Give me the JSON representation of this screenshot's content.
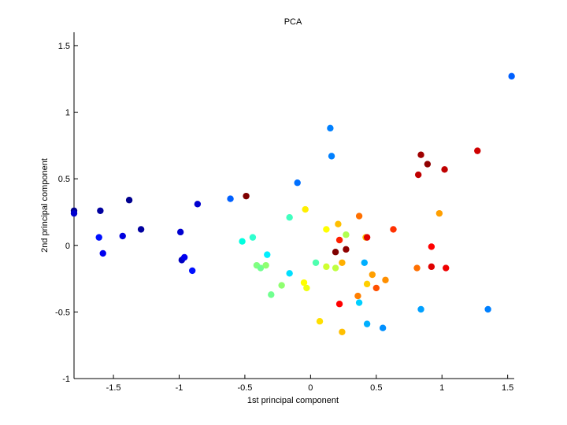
{
  "chart_data": {
    "type": "scatter",
    "title": "PCA",
    "xlabel": "1st principal component",
    "ylabel": "2nd principal component",
    "xlim": [
      -1.8,
      1.55
    ],
    "ylim": [
      -1.0,
      1.6
    ],
    "xticks": [
      -1.5,
      -1,
      -0.5,
      0,
      0.5,
      1,
      1.5
    ],
    "xtick_labels": [
      "-1.5",
      "-1",
      "-0.5",
      "0",
      "0.5",
      "1",
      "1.5"
    ],
    "yticks": [
      -1,
      -0.5,
      0,
      0.5,
      1,
      1.5
    ],
    "ytick_labels": [
      "-1",
      "-0.5",
      "0",
      "0.5",
      "1",
      "1.5"
    ],
    "grid": false,
    "legend": "none",
    "points": [
      {
        "x": -1.8,
        "y": 0.26,
        "color": "#00008f"
      },
      {
        "x": -1.8,
        "y": 0.24,
        "color": "#0000cf"
      },
      {
        "x": -1.6,
        "y": 0.26,
        "color": "#00009f"
      },
      {
        "x": -1.61,
        "y": 0.06,
        "color": "#0010ff"
      },
      {
        "x": -1.58,
        "y": -0.06,
        "color": "#0000ef"
      },
      {
        "x": -1.43,
        "y": 0.07,
        "color": "#0000df"
      },
      {
        "x": -1.38,
        "y": 0.34,
        "color": "#00008f"
      },
      {
        "x": -1.29,
        "y": 0.12,
        "color": "#00009f"
      },
      {
        "x": -0.99,
        "y": 0.1,
        "color": "#0000cf"
      },
      {
        "x": -0.98,
        "y": -0.11,
        "color": "#0000bf"
      },
      {
        "x": -0.96,
        "y": -0.09,
        "color": "#0000ef"
      },
      {
        "x": -0.9,
        "y": -0.19,
        "color": "#0010ff"
      },
      {
        "x": -0.86,
        "y": 0.31,
        "color": "#0000cf"
      },
      {
        "x": -0.61,
        "y": 0.35,
        "color": "#0060ff"
      },
      {
        "x": -0.49,
        "y": 0.37,
        "color": "#7f0000"
      },
      {
        "x": -0.1,
        "y": 0.47,
        "color": "#0070ff"
      },
      {
        "x": 0.15,
        "y": 0.88,
        "color": "#0080ff"
      },
      {
        "x": 0.16,
        "y": 0.67,
        "color": "#0080ff"
      },
      {
        "x": 1.53,
        "y": 1.27,
        "color": "#0060ff"
      },
      {
        "x": -0.52,
        "y": 0.03,
        "color": "#00ffdf"
      },
      {
        "x": -0.44,
        "y": 0.06,
        "color": "#30ffcf"
      },
      {
        "x": -0.41,
        "y": -0.15,
        "color": "#80ff80"
      },
      {
        "x": -0.38,
        "y": -0.17,
        "color": "#70ff8f"
      },
      {
        "x": -0.34,
        "y": -0.15,
        "color": "#8fff70"
      },
      {
        "x": -0.33,
        "y": -0.07,
        "color": "#00efff"
      },
      {
        "x": -0.3,
        "y": -0.37,
        "color": "#70ff8f"
      },
      {
        "x": -0.22,
        "y": -0.3,
        "color": "#8fff70"
      },
      {
        "x": -0.16,
        "y": 0.21,
        "color": "#40ffbf"
      },
      {
        "x": -0.16,
        "y": -0.21,
        "color": "#00dfff"
      },
      {
        "x": -0.04,
        "y": 0.27,
        "color": "#ffef00"
      },
      {
        "x": -0.05,
        "y": -0.28,
        "color": "#ffff00"
      },
      {
        "x": -0.03,
        "y": -0.32,
        "color": "#efff10"
      },
      {
        "x": 0.04,
        "y": -0.13,
        "color": "#4fffaf"
      },
      {
        "x": 0.07,
        "y": -0.57,
        "color": "#ffdf00"
      },
      {
        "x": 0.12,
        "y": 0.12,
        "color": "#ffff00"
      },
      {
        "x": 0.12,
        "y": -0.16,
        "color": "#cfff30"
      },
      {
        "x": 0.19,
        "y": -0.05,
        "color": "#7f0000"
      },
      {
        "x": 0.19,
        "y": -0.17,
        "color": "#bfff40"
      },
      {
        "x": 0.21,
        "y": 0.16,
        "color": "#ffbf00"
      },
      {
        "x": 0.22,
        "y": 0.04,
        "color": "#ff2000"
      },
      {
        "x": 0.22,
        "y": -0.44,
        "color": "#ff0000"
      },
      {
        "x": 0.24,
        "y": -0.13,
        "color": "#ffaf00"
      },
      {
        "x": 0.24,
        "y": -0.65,
        "color": "#ffbf00"
      },
      {
        "x": 0.27,
        "y": 0.08,
        "color": "#afff50"
      },
      {
        "x": 0.27,
        "y": -0.03,
        "color": "#8f0000"
      },
      {
        "x": 0.36,
        "y": -0.38,
        "color": "#ff7f00"
      },
      {
        "x": 0.37,
        "y": 0.22,
        "color": "#ff7000"
      },
      {
        "x": 0.37,
        "y": -0.43,
        "color": "#00cfff"
      },
      {
        "x": 0.41,
        "y": -0.13,
        "color": "#00afff"
      },
      {
        "x": 0.42,
        "y": 0.06,
        "color": "#ffbf00"
      },
      {
        "x": 0.43,
        "y": 0.06,
        "color": "#df0000"
      },
      {
        "x": 0.43,
        "y": -0.29,
        "color": "#ffcf00"
      },
      {
        "x": 0.43,
        "y": -0.59,
        "color": "#00afff"
      },
      {
        "x": 0.47,
        "y": -0.22,
        "color": "#ff9f00"
      },
      {
        "x": 0.5,
        "y": -0.32,
        "color": "#ff5000"
      },
      {
        "x": 0.55,
        "y": -0.62,
        "color": "#0090ff"
      },
      {
        "x": 0.57,
        "y": -0.26,
        "color": "#ff8f00"
      },
      {
        "x": 0.63,
        "y": 0.12,
        "color": "#ff3000"
      },
      {
        "x": 0.81,
        "y": -0.17,
        "color": "#ff7000"
      },
      {
        "x": 0.82,
        "y": 0.53,
        "color": "#bf0000"
      },
      {
        "x": 0.84,
        "y": 0.68,
        "color": "#9f0000"
      },
      {
        "x": 0.84,
        "y": -0.48,
        "color": "#00a0ff"
      },
      {
        "x": 0.89,
        "y": 0.61,
        "color": "#8f0000"
      },
      {
        "x": 0.92,
        "y": -0.01,
        "color": "#ff0000"
      },
      {
        "x": 0.92,
        "y": -0.16,
        "color": "#df0000"
      },
      {
        "x": 0.98,
        "y": 0.24,
        "color": "#ff9f00"
      },
      {
        "x": 1.02,
        "y": 0.57,
        "color": "#bf0000"
      },
      {
        "x": 1.03,
        "y": -0.17,
        "color": "#ef0000"
      },
      {
        "x": 1.27,
        "y": 0.71,
        "color": "#cf0000"
      },
      {
        "x": 1.35,
        "y": -0.48,
        "color": "#0080ff"
      }
    ]
  }
}
